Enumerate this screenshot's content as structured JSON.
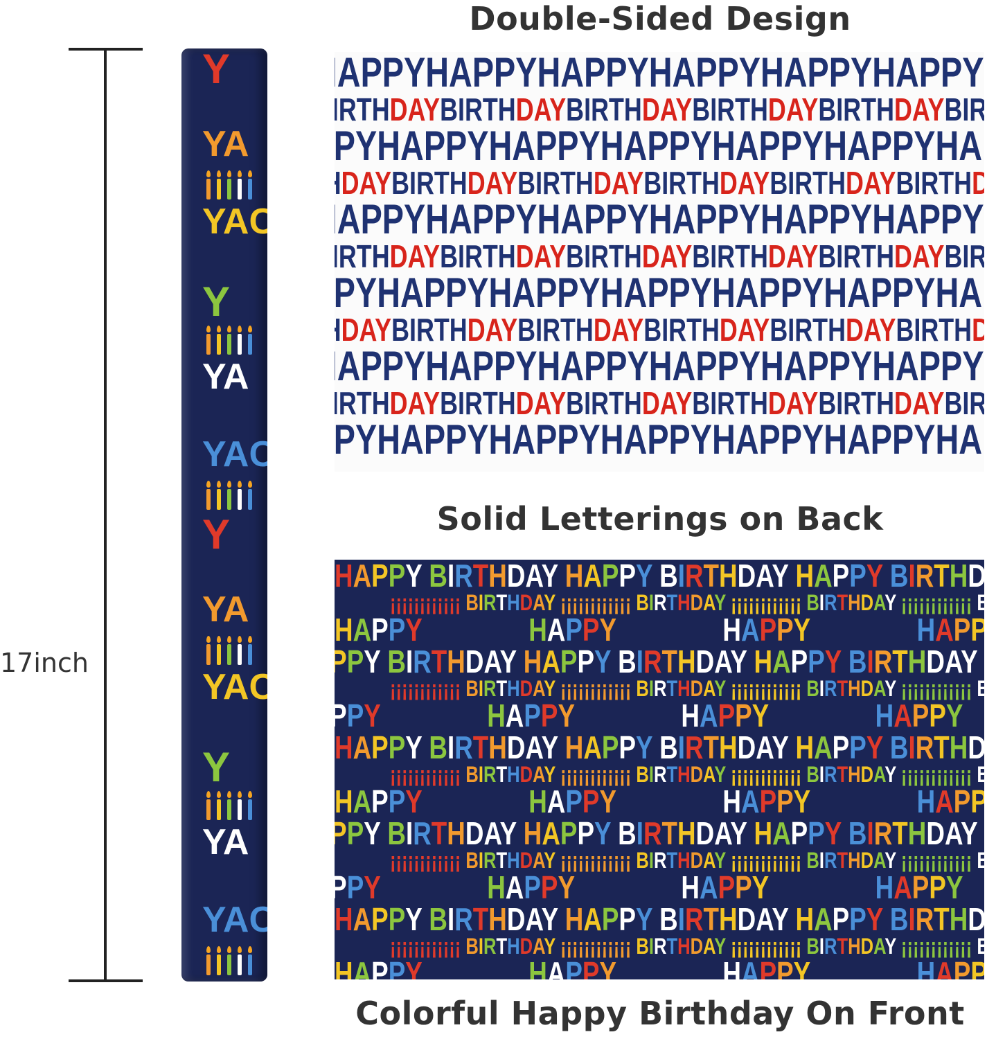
{
  "titles": {
    "top": "Double-Sided Design",
    "middle": "Solid Letterings on Back",
    "bottom": "Colorful Happy Birthday On Front"
  },
  "measurement": {
    "label": "17inch"
  },
  "pattern": {
    "word_happy": "HAPPY",
    "word_birth": "BIRTH",
    "word_day": "DAY",
    "back_colors": {
      "navy": "#1f3272",
      "red": "#d8241b",
      "background": "#fbfbfb"
    },
    "front_colors": {
      "background": "#1b2555",
      "letters": [
        "#e03a2a",
        "#f29a2e",
        "#f3c625",
        "#8cc63f",
        "#ffffff",
        "#4a8fd8"
      ]
    }
  }
}
